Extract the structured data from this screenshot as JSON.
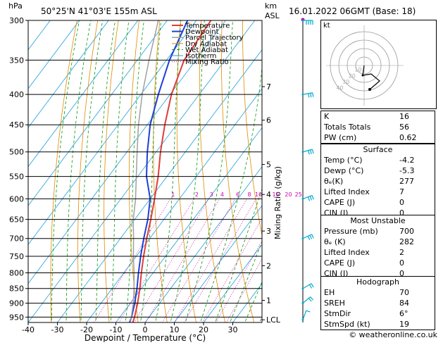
{
  "header": {
    "pressure_unit": "hPa",
    "location": "50°25'N  41°03'E  155m  ASL",
    "height_unit": "km",
    "height_unit2": "ASL",
    "datetime": "16.01.2022  06GMT  (Base: 18)"
  },
  "colors": {
    "temperature": "#e03c3c",
    "dewpoint": "#1f3fd8",
    "parcel": "#a0a0a0",
    "dry_adiabat": "#e08a00",
    "wet_adiabat": "#0a9a0a",
    "isotherm": "#1ea0e0",
    "mixing_ratio": "#cc00aa",
    "wind": "#00aacc"
  },
  "legend": [
    "Temperature",
    "Dewpoint",
    "Parcel Trajectory",
    "Dry Adiabat",
    "Wet Adiabat",
    "Isotherm",
    "Mixing Ratio"
  ],
  "chart_data": {
    "type": "line",
    "xlabel": "Dewpoint / Temperature (°C)",
    "ylabel_right": "Mixing Ratio (g/kg)",
    "x_ticks": [
      -40,
      -30,
      -20,
      -10,
      0,
      10,
      20,
      30
    ],
    "xlim": [
      -40,
      40
    ],
    "pressure_ticks": [
      300,
      350,
      400,
      450,
      500,
      550,
      600,
      650,
      700,
      750,
      800,
      850,
      900,
      950
    ],
    "ylim": [
      970,
      300
    ],
    "y_scale": "log",
    "skew": true,
    "height_km_ticks": [
      {
        "label": "7",
        "p": 388
      },
      {
        "label": "6",
        "p": 442
      },
      {
        "label": "5",
        "p": 525
      },
      {
        "label": "4",
        "p": 590
      },
      {
        "label": "3",
        "p": 680
      },
      {
        "label": "2",
        "p": 778
      },
      {
        "label": "1",
        "p": 890
      },
      {
        "label": "LCL",
        "p": 960
      }
    ],
    "mixing_ratio_labels": [
      "1",
      "2",
      "3",
      "4",
      "6",
      "8",
      "10",
      "15",
      "20",
      "25"
    ],
    "mixing_ratio_label_p": 590,
    "series": [
      {
        "name": "Temperature",
        "points": [
          [
            970,
            -4.2
          ],
          [
            950,
            -5
          ],
          [
            900,
            -7.5
          ],
          [
            850,
            -10.5
          ],
          [
            800,
            -14
          ],
          [
            750,
            -17.5
          ],
          [
            700,
            -21
          ],
          [
            650,
            -24.5
          ],
          [
            600,
            -28.5
          ],
          [
            550,
            -33
          ],
          [
            500,
            -38.5
          ],
          [
            450,
            -44
          ],
          [
            400,
            -49.5
          ],
          [
            350,
            -54
          ],
          [
            300,
            -55
          ]
        ]
      },
      {
        "name": "Dewpoint",
        "points": [
          [
            970,
            -5.3
          ],
          [
            950,
            -6
          ],
          [
            900,
            -8.5
          ],
          [
            850,
            -11.5
          ],
          [
            800,
            -15
          ],
          [
            750,
            -18.5
          ],
          [
            700,
            -22
          ],
          [
            650,
            -25.5
          ],
          [
            600,
            -30
          ],
          [
            550,
            -37
          ],
          [
            500,
            -43
          ],
          [
            450,
            -49
          ],
          [
            400,
            -54
          ],
          [
            350,
            -59
          ],
          [
            300,
            -63
          ]
        ]
      },
      {
        "name": "Parcel Trajectory",
        "points": [
          [
            970,
            -5
          ],
          [
            900,
            -9
          ],
          [
            850,
            -12.5
          ],
          [
            800,
            -16.5
          ],
          [
            750,
            -21
          ],
          [
            700,
            -25.5
          ],
          [
            650,
            -30.5
          ],
          [
            600,
            -35
          ],
          [
            550,
            -40.5
          ],
          [
            500,
            -46.5
          ],
          [
            450,
            -53
          ],
          [
            400,
            -59.5
          ],
          [
            350,
            -66
          ],
          [
            300,
            -73
          ]
        ]
      }
    ],
    "wind_barbs": [
      {
        "p": 300,
        "dir": 270,
        "kt": 35
      },
      {
        "p": 400,
        "dir": 260,
        "kt": 30
      },
      {
        "p": 500,
        "dir": 255,
        "kt": 30
      },
      {
        "p": 600,
        "dir": 250,
        "kt": 25
      },
      {
        "p": 700,
        "dir": 245,
        "kt": 25
      },
      {
        "p": 850,
        "dir": 240,
        "kt": 20
      },
      {
        "p": 900,
        "dir": 230,
        "kt": 15
      },
      {
        "p": 960,
        "dir": 200,
        "kt": 10
      }
    ]
  },
  "hodograph": {
    "unit": "kt",
    "ring_labels": [
      "10",
      "20",
      "30",
      "40"
    ]
  },
  "indices": {
    "basic": [
      {
        "label": "K",
        "value": "16"
      },
      {
        "label": "Totals Totals",
        "value": "56"
      },
      {
        "label": "PW (cm)",
        "value": "0.62"
      }
    ],
    "surface": {
      "title": "Surface",
      "rows": [
        {
          "label": "Temp (°C)",
          "value": "-4.2"
        },
        {
          "label": "Dewp (°C)",
          "value": "-5.3"
        },
        {
          "label": "θₑ(K)",
          "value": "277"
        },
        {
          "label": "Lifted Index",
          "value": "7"
        },
        {
          "label": "CAPE (J)",
          "value": "0"
        },
        {
          "label": "CIN (J)",
          "value": "0"
        }
      ]
    },
    "most_unstable": {
      "title": "Most Unstable",
      "rows": [
        {
          "label": "Pressure (mb)",
          "value": "700"
        },
        {
          "label": "θₑ (K)",
          "value": "282"
        },
        {
          "label": "Lifted Index",
          "value": "2"
        },
        {
          "label": "CAPE (J)",
          "value": "0"
        },
        {
          "label": "CIN (J)",
          "value": "0"
        }
      ]
    },
    "hodograph": {
      "title": "Hodograph",
      "rows": [
        {
          "label": "EH",
          "value": "70"
        },
        {
          "label": "SREH",
          "value": "84"
        },
        {
          "label": "StmDir",
          "value": "6°"
        },
        {
          "label": "StmSpd (kt)",
          "value": "19"
        }
      ]
    }
  },
  "copyright": "© weatheronline.co.uk"
}
